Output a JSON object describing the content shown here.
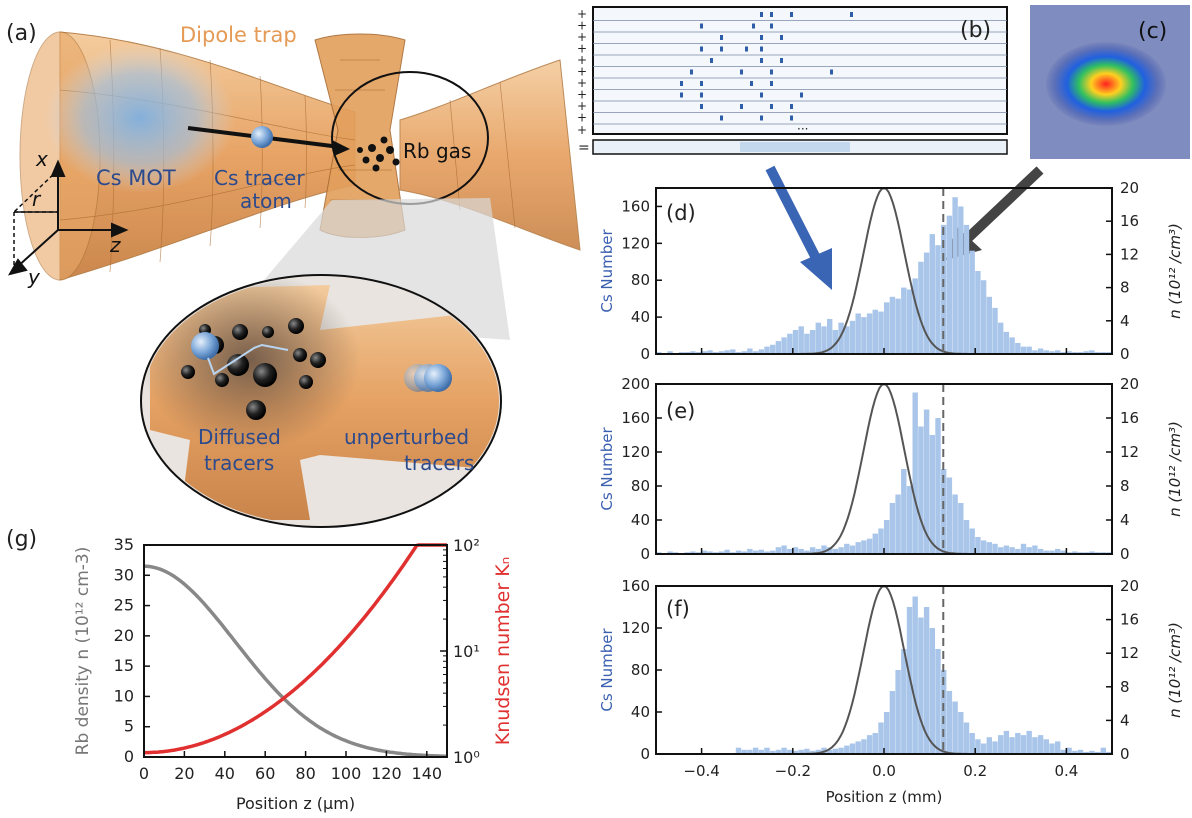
{
  "panels": {
    "a": {
      "tag": "(a)",
      "dipole_trap": "Dipole trap",
      "cs_mot": "Cs MOT",
      "cs_tracer_line1": "Cs tracer",
      "cs_tracer_line2": "atom",
      "rb_gas": "Rb gas",
      "axis_x": "x",
      "axis_r": "r",
      "axis_z": "z",
      "axis_y": "y",
      "diffused_line1": "Diffused",
      "diffused_line2": "tracers",
      "unperturbed_line1": "unperturbed",
      "unperturbed_line2": "tracers"
    },
    "b": {
      "tag": "(b)",
      "plus": "+",
      "equals": "=",
      "ellipsis": "···"
    },
    "c": {
      "tag": "(c)"
    }
  },
  "chart_data": [
    {
      "id": "d",
      "type": "bar",
      "tag": "(d)",
      "xlim": [
        -0.5,
        0.5
      ],
      "ylim_left": [
        0,
        180
      ],
      "yticks_left": [
        0,
        40,
        80,
        120,
        160
      ],
      "ylim_right": [
        0,
        20
      ],
      "yticks_right": [
        0,
        4,
        8,
        12,
        16,
        20
      ],
      "ylabel_left": "Cs Number",
      "ylabel_right": "n (10¹² /cm³)",
      "xlabel": "",
      "bin_start": -0.5,
      "bin_width": 0.0125,
      "values": [
        2,
        0,
        3,
        0,
        2,
        2,
        3,
        2,
        3,
        4,
        2,
        3,
        4,
        5,
        2,
        3,
        6,
        3,
        5,
        8,
        10,
        14,
        18,
        22,
        26,
        30,
        22,
        26,
        34,
        30,
        38,
        26,
        34,
        30,
        36,
        44,
        40,
        44,
        48,
        46,
        56,
        62,
        60,
        72,
        70,
        82,
        100,
        110,
        130,
        118,
        140,
        150,
        170,
        160,
        140,
        112,
        90,
        80,
        62,
        50,
        34,
        24,
        18,
        12,
        8,
        8,
        4,
        6,
        4,
        3,
        4,
        2,
        3,
        2,
        2,
        3,
        4,
        2,
        2,
        2
      ],
      "gauss_peak": 20,
      "gauss_sigma": 0.045,
      "dashed_x": 0.13
    },
    {
      "id": "e",
      "type": "bar",
      "tag": "(e)",
      "xlim": [
        -0.5,
        0.5
      ],
      "ylim_left": [
        0,
        200
      ],
      "yticks_left": [
        0,
        40,
        80,
        120,
        160,
        200
      ],
      "ylim_right": [
        0,
        20
      ],
      "yticks_right": [
        0,
        4,
        8,
        12,
        16,
        20
      ],
      "ylabel_left": "Cs Number",
      "ylabel_right": "n (10¹² /cm³)",
      "xlabel": "",
      "bin_start": -0.5,
      "bin_width": 0.0125,
      "values": [
        2,
        0,
        3,
        2,
        0,
        2,
        3,
        2,
        4,
        3,
        2,
        3,
        5,
        2,
        4,
        3,
        6,
        4,
        5,
        3,
        4,
        8,
        10,
        6,
        8,
        6,
        4,
        8,
        6,
        10,
        8,
        6,
        8,
        12,
        10,
        14,
        16,
        18,
        24,
        30,
        40,
        60,
        70,
        100,
        80,
        190,
        150,
        170,
        140,
        160,
        100,
        90,
        70,
        60,
        40,
        30,
        20,
        16,
        14,
        12,
        8,
        10,
        8,
        6,
        12,
        8,
        10,
        6,
        4,
        4,
        6,
        4,
        2,
        3,
        2,
        2,
        3,
        2,
        2,
        2
      ],
      "gauss_peak": 20,
      "gauss_sigma": 0.045,
      "dashed_x": 0.13
    },
    {
      "id": "f",
      "type": "bar",
      "tag": "(f)",
      "xlim": [
        -0.5,
        0.5
      ],
      "ylim_left": [
        0,
        160
      ],
      "yticks_left": [
        0,
        40,
        80,
        120,
        160
      ],
      "ylim_right": [
        0,
        20
      ],
      "yticks_right": [
        0,
        4,
        8,
        12,
        16,
        20
      ],
      "ylabel_left": "Cs Number",
      "ylabel_right": "n (10¹² /cm³)",
      "xlabel": "Position z (mm)",
      "xticks": [
        -0.4,
        -0.2,
        0.0,
        0.2,
        0.4
      ],
      "xtick_labels": [
        "−0.4",
        "−0.2",
        "0.0",
        "0.2",
        "0.4"
      ],
      "bin_start": -0.5,
      "bin_width": 0.0125,
      "values": [
        0,
        0,
        0,
        0,
        0,
        0,
        0,
        0,
        0,
        0,
        0,
        0,
        0,
        0,
        6,
        4,
        4,
        6,
        4,
        6,
        3,
        4,
        6,
        4,
        3,
        4,
        5,
        3,
        4,
        6,
        4,
        5,
        6,
        8,
        10,
        12,
        14,
        18,
        20,
        30,
        40,
        60,
        80,
        100,
        140,
        150,
        130,
        140,
        120,
        100,
        80,
        60,
        50,
        40,
        30,
        20,
        14,
        10,
        16,
        12,
        18,
        22,
        16,
        20,
        18,
        22,
        16,
        18,
        14,
        10,
        12,
        4,
        6,
        3,
        4,
        2,
        3,
        2,
        6,
        2
      ],
      "gauss_peak": 20,
      "gauss_sigma": 0.045,
      "dashed_x": 0.13
    },
    {
      "id": "g",
      "type": "line",
      "tag": "(g)",
      "xlim": [
        0,
        150
      ],
      "xticks": [
        0,
        20,
        40,
        60,
        80,
        100,
        120,
        140
      ],
      "xlabel": "Position z (μm)",
      "ylim_left": [
        0,
        35
      ],
      "yticks_left": [
        0,
        5,
        10,
        15,
        20,
        25,
        30,
        35
      ],
      "ylabel_left": "Rb density n (10¹² cm-3)",
      "ylim_right_log": [
        1,
        100
      ],
      "ytick_labels_right": [
        "10⁰",
        "10¹",
        "10²"
      ],
      "ylabel_right": "Knudsen number Kₙ",
      "series": [
        {
          "name": "Rb density",
          "color": "#888888",
          "peak": 31.5,
          "sigma": 45
        },
        {
          "name": "Knudsen number",
          "color": "#e03030",
          "k0": 1.1,
          "sigma": 45
        }
      ]
    }
  ],
  "colors": {
    "bar": "#a9c6ea",
    "gauss": "#555555",
    "blue_text": "#3a5fb0",
    "orange": "#e8a060",
    "red": "#e03030"
  }
}
